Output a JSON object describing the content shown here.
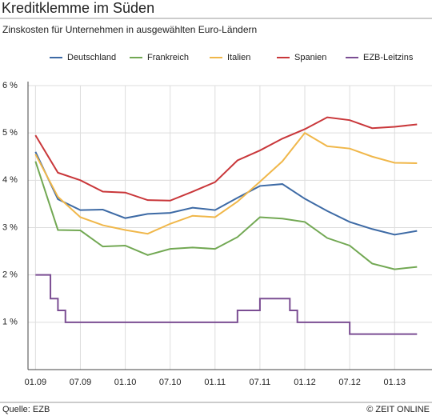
{
  "chart_data": {
    "type": "line",
    "title": "Kreditklemme im Süden",
    "subtitle": "Zinskosten für Unternehmen in ausgewählten Euro-Ländern",
    "source": "Quelle: EZB",
    "credit": "© ZEIT ONLINE",
    "series": [
      {
        "name": "Deutschland",
        "color": "#3d6aa5",
        "x": [
          "2009-01",
          "2009-04",
          "2009-07",
          "2009-10",
          "2010-01",
          "2010-04",
          "2010-07",
          "2010-10",
          "2011-01",
          "2011-04",
          "2011-07",
          "2011-10",
          "2012-01",
          "2012-04",
          "2012-07",
          "2012-10",
          "2013-01",
          "2013-04"
        ],
        "values": [
          4.6,
          3.6,
          3.37,
          3.38,
          3.2,
          3.29,
          3.31,
          3.42,
          3.37,
          3.63,
          3.88,
          3.92,
          3.61,
          3.35,
          3.12,
          2.97,
          2.85,
          2.93
        ]
      },
      {
        "name": "Frankreich",
        "color": "#72a853",
        "x": [
          "2009-01",
          "2009-04",
          "2009-07",
          "2009-10",
          "2010-01",
          "2010-04",
          "2010-07",
          "2010-10",
          "2011-01",
          "2011-04",
          "2011-07",
          "2011-10",
          "2012-01",
          "2012-04",
          "2012-07",
          "2012-10",
          "2013-01",
          "2013-04"
        ],
        "values": [
          4.4,
          2.95,
          2.94,
          2.6,
          2.62,
          2.42,
          2.55,
          2.58,
          2.55,
          2.8,
          3.22,
          3.19,
          3.12,
          2.78,
          2.62,
          2.24,
          2.12,
          2.17
        ]
      },
      {
        "name": "Italien",
        "color": "#f0b74a",
        "x": [
          "2009-01",
          "2009-04",
          "2009-07",
          "2009-10",
          "2010-01",
          "2010-04",
          "2010-07",
          "2010-10",
          "2011-01",
          "2011-04",
          "2011-07",
          "2011-10",
          "2012-01",
          "2012-04",
          "2012-07",
          "2012-10",
          "2013-01",
          "2013-04"
        ],
        "values": [
          4.55,
          3.65,
          3.22,
          3.05,
          2.95,
          2.87,
          3.08,
          3.25,
          3.22,
          3.55,
          3.97,
          4.4,
          5.0,
          4.72,
          4.67,
          4.5,
          4.37,
          4.36
        ]
      },
      {
        "name": "Spanien",
        "color": "#c9373a",
        "x": [
          "2009-01",
          "2009-04",
          "2009-07",
          "2009-10",
          "2010-01",
          "2010-04",
          "2010-07",
          "2010-10",
          "2011-01",
          "2011-04",
          "2011-07",
          "2011-10",
          "2012-01",
          "2012-04",
          "2012-07",
          "2012-10",
          "2013-01",
          "2013-04"
        ],
        "values": [
          4.95,
          4.16,
          4.0,
          3.76,
          3.74,
          3.58,
          3.57,
          3.76,
          3.96,
          4.42,
          4.63,
          4.88,
          5.08,
          5.33,
          5.27,
          5.1,
          5.13,
          5.18
        ]
      },
      {
        "name": "EZB-Leitzins",
        "color": "#7b4e93",
        "step": true,
        "x": [
          "2009-01",
          "2009-03",
          "2009-04",
          "2009-05",
          "2011-04",
          "2011-07",
          "2011-11",
          "2011-12",
          "2012-07",
          "2013-04"
        ],
        "values": [
          2.0,
          1.5,
          1.25,
          1.0,
          1.25,
          1.5,
          1.25,
          1.0,
          0.75,
          0.75
        ]
      }
    ],
    "xlim": [
      "2008-12",
      "2013-06"
    ],
    "xticks": [
      {
        "value": "2009-01",
        "label": "01.09"
      },
      {
        "value": "2009-07",
        "label": "07.09"
      },
      {
        "value": "2010-01",
        "label": "01.10"
      },
      {
        "value": "2010-07",
        "label": "07.10"
      },
      {
        "value": "2011-01",
        "label": "01.11"
      },
      {
        "value": "2011-07",
        "label": "07.11"
      },
      {
        "value": "2012-01",
        "label": "01.12"
      },
      {
        "value": "2012-07",
        "label": "07.12"
      },
      {
        "value": "2013-01",
        "label": "01.13"
      }
    ],
    "ylim": [
      0,
      6
    ],
    "yticks": [
      {
        "value": 1,
        "label": "1 %"
      },
      {
        "value": 2,
        "label": "2 %"
      },
      {
        "value": 3,
        "label": "3 %"
      },
      {
        "value": 4,
        "label": "4 %"
      },
      {
        "value": 5,
        "label": "5 %"
      },
      {
        "value": 6,
        "label": "6 %"
      }
    ],
    "grid": true
  }
}
